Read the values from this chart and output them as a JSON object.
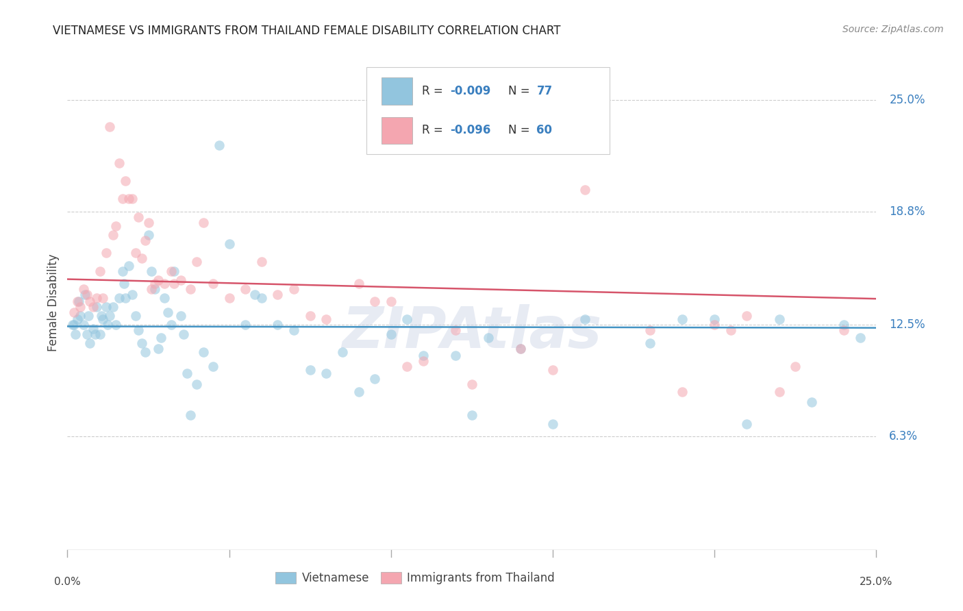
{
  "title": "VIETNAMESE VS IMMIGRANTS FROM THAILAND FEMALE DISABILITY CORRELATION CHART",
  "source": "Source: ZipAtlas.com",
  "ylabel": "Female Disability",
  "ytick_labels": [
    "6.3%",
    "12.5%",
    "18.8%",
    "25.0%"
  ],
  "ytick_values": [
    6.3,
    12.5,
    18.8,
    25.0
  ],
  "xlim": [
    0.0,
    25.0
  ],
  "ylim": [
    0.0,
    27.5
  ],
  "watermark": "ZIPAtlas",
  "blue_color": "#92c5de",
  "pink_color": "#f4a6b0",
  "blue_line_color": "#4393c3",
  "pink_line_color": "#d6546a",
  "blue_text_color": "#3a7fbf",
  "pink_text_color": "#3a7fbf",
  "R_blue": -0.009,
  "N_blue": 77,
  "R_pink": -0.096,
  "N_pink": 60,
  "viet_x": [
    0.2,
    0.3,
    0.4,
    0.5,
    0.6,
    0.7,
    0.8,
    0.9,
    1.0,
    1.1,
    1.2,
    1.3,
    1.4,
    1.5,
    1.6,
    1.7,
    1.8,
    1.9,
    2.0,
    2.1,
    2.2,
    2.3,
    2.4,
    2.5,
    2.6,
    2.7,
    2.8,
    2.9,
    3.0,
    3.1,
    3.2,
    3.3,
    3.5,
    3.6,
    3.7,
    3.8,
    4.0,
    4.2,
    4.5,
    4.7,
    5.0,
    5.5,
    5.8,
    6.0,
    6.5,
    7.0,
    7.5,
    8.0,
    8.5,
    9.0,
    9.5,
    10.0,
    10.5,
    11.0,
    12.0,
    12.5,
    13.0,
    14.0,
    15.0,
    16.0,
    18.0,
    19.0,
    20.0,
    21.0,
    22.0,
    23.0,
    24.0,
    24.5,
    0.15,
    0.25,
    0.35,
    0.55,
    0.65,
    0.85,
    1.05,
    1.25,
    1.75
  ],
  "viet_y": [
    12.5,
    12.8,
    13.0,
    12.5,
    12.0,
    11.5,
    12.3,
    13.5,
    12.0,
    12.8,
    13.5,
    13.0,
    13.5,
    12.5,
    14.0,
    15.5,
    14.0,
    15.8,
    14.2,
    13.0,
    12.2,
    11.5,
    11.0,
    17.5,
    15.5,
    14.5,
    11.2,
    11.8,
    14.0,
    13.2,
    12.5,
    15.5,
    13.0,
    12.0,
    9.8,
    7.5,
    9.2,
    11.0,
    10.2,
    22.5,
    17.0,
    12.5,
    14.2,
    14.0,
    12.5,
    12.2,
    10.0,
    9.8,
    11.0,
    8.8,
    9.5,
    12.0,
    12.8,
    10.8,
    10.8,
    7.5,
    11.8,
    11.2,
    7.0,
    12.8,
    11.5,
    12.8,
    12.8,
    7.0,
    12.8,
    8.2,
    12.5,
    11.8,
    12.5,
    12.0,
    13.8,
    14.2,
    13.0,
    12.0,
    13.0,
    12.5,
    14.8
  ],
  "thai_x": [
    0.2,
    0.4,
    0.6,
    0.7,
    0.9,
    1.0,
    1.2,
    1.3,
    1.4,
    1.5,
    1.6,
    1.7,
    1.8,
    1.9,
    2.0,
    2.1,
    2.2,
    2.3,
    2.4,
    2.5,
    2.6,
    2.8,
    3.0,
    3.2,
    3.5,
    3.8,
    4.0,
    4.2,
    4.5,
    5.0,
    5.5,
    6.0,
    6.5,
    7.0,
    7.5,
    8.0,
    9.0,
    9.5,
    10.0,
    10.5,
    11.0,
    12.0,
    12.5,
    14.0,
    15.0,
    16.0,
    18.0,
    19.0,
    20.0,
    20.5,
    21.0,
    22.0,
    22.5,
    24.0,
    0.3,
    0.5,
    0.8,
    1.1,
    2.7,
    3.3
  ],
  "thai_y": [
    13.2,
    13.5,
    14.2,
    13.8,
    14.0,
    15.5,
    16.5,
    23.5,
    17.5,
    18.0,
    21.5,
    19.5,
    20.5,
    19.5,
    19.5,
    16.5,
    18.5,
    16.2,
    17.2,
    18.2,
    14.5,
    15.0,
    14.8,
    15.5,
    15.0,
    14.5,
    16.0,
    18.2,
    14.8,
    14.0,
    14.5,
    16.0,
    14.2,
    14.5,
    13.0,
    12.8,
    14.8,
    13.8,
    13.8,
    10.2,
    10.5,
    12.2,
    9.2,
    11.2,
    10.0,
    20.0,
    12.2,
    8.8,
    12.5,
    12.2,
    13.0,
    8.8,
    10.2,
    12.2,
    13.8,
    14.5,
    13.5,
    14.0,
    14.8,
    14.8
  ]
}
